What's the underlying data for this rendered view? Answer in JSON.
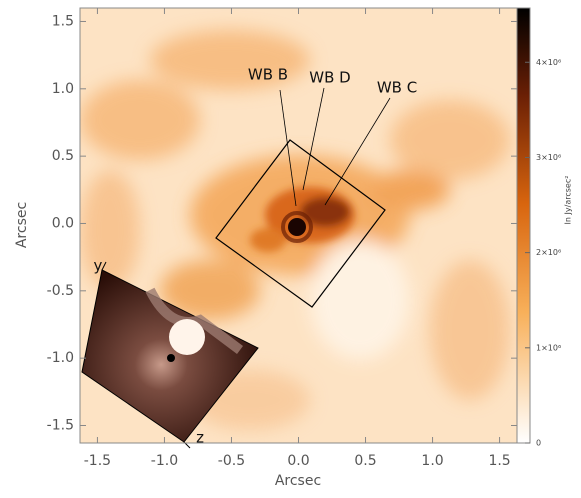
{
  "chart_data": {
    "type": "image",
    "xlabel": "Arcsec",
    "ylabel": "Arcsec",
    "xlim": [
      -1.63,
      1.63
    ],
    "ylim": [
      -1.63,
      1.6
    ],
    "xticks": [
      {
        "value": -1.5,
        "label": "-1.5"
      },
      {
        "value": -1.0,
        "label": "-1.0"
      },
      {
        "value": -0.5,
        "label": "-0.5"
      },
      {
        "value": 0.0,
        "label": "0.0"
      },
      {
        "value": 0.5,
        "label": "0.5"
      },
      {
        "value": 1.0,
        "label": "1.0"
      },
      {
        "value": 1.5,
        "label": "1.5"
      }
    ],
    "yticks": [
      {
        "value": -1.5,
        "label": "-1.5"
      },
      {
        "value": -1.0,
        "label": "-1.0"
      },
      {
        "value": -0.5,
        "label": "-0.5"
      },
      {
        "value": 0.0,
        "label": "0.0"
      },
      {
        "value": 0.5,
        "label": "0.5"
      },
      {
        "value": 1.0,
        "label": "1.0"
      },
      {
        "value": 1.5,
        "label": "1.5"
      }
    ],
    "colorbar": {
      "label": "In Jy/arcsec²",
      "lim": [
        0,
        4570000
      ],
      "ticks": [
        0,
        {
          "value": 1000000,
          "label": "1×10⁶"
        },
        {
          "value": 2000000,
          "label": "2×10⁶"
        },
        {
          "value": 3000000,
          "label": "3×10⁶"
        },
        {
          "value": 4000000,
          "label": "4×10⁶"
        }
      ]
    },
    "annotations": [
      "WB B",
      "WB D",
      "WB C"
    ],
    "inset_axes": [
      "y",
      "z"
    ]
  }
}
